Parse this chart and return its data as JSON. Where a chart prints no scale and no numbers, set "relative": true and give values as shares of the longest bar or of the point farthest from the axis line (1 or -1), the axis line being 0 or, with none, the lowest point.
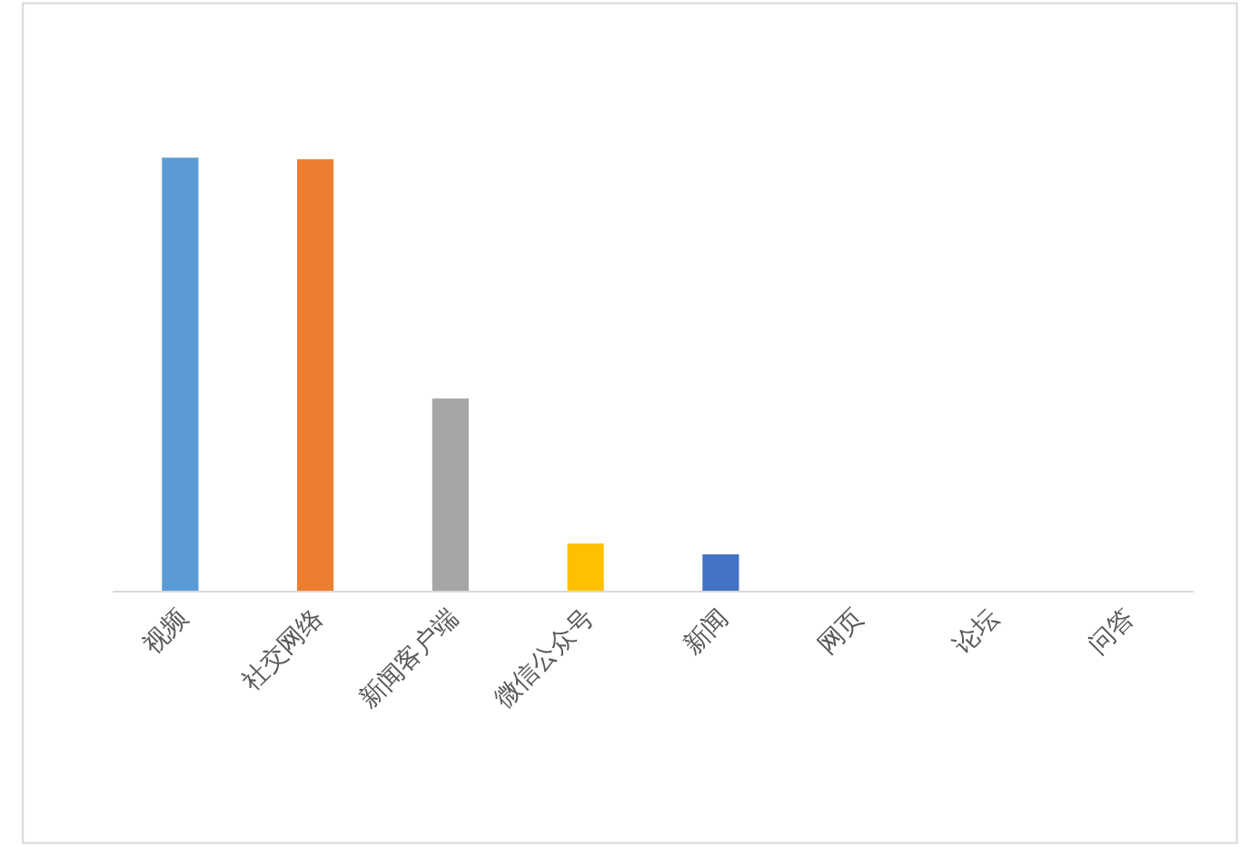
{
  "chart_data": {
    "type": "bar",
    "relative": true,
    "categories": [
      "视频",
      "社交网络",
      "新闻客户端",
      "微信公众号",
      "新闻",
      "网页",
      "论坛",
      "问答"
    ],
    "values": [
      1,
      0.996,
      0.444,
      0.109,
      0.084,
      0,
      0,
      0
    ],
    "colors": [
      "#5b9bd5",
      "#ed7d31",
      "#a5a5a5",
      "#ffc000",
      "#4472c4",
      "#70ad47",
      "#255e91",
      "#9e480e"
    ]
  }
}
